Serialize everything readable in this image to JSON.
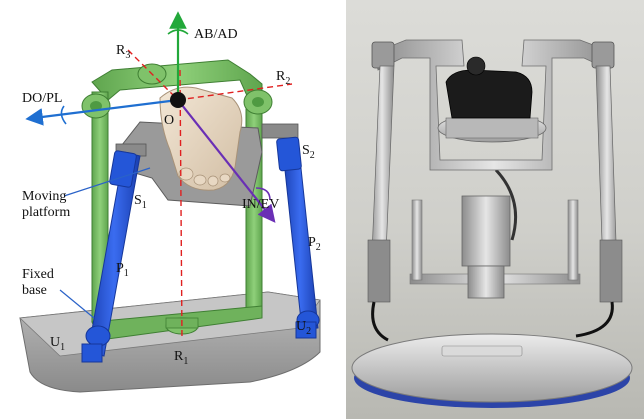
{
  "diagram": {
    "axes": {
      "ab_ad": "AB/AD",
      "do_pl": "DO/PL",
      "in_ev": "IN/EV",
      "origin": "O"
    },
    "rotation_axes": {
      "r1": {
        "base": "R",
        "sub": "1"
      },
      "r2": {
        "base": "R",
        "sub": "2"
      },
      "r3": {
        "base": "R",
        "sub": "3"
      }
    },
    "joints": {
      "s1": {
        "base": "S",
        "sub": "1"
      },
      "s2": {
        "base": "S",
        "sub": "2"
      },
      "p1": {
        "base": "P",
        "sub": "1"
      },
      "p2": {
        "base": "P",
        "sub": "2"
      },
      "u1": {
        "base": "U",
        "sub": "1"
      },
      "u2": {
        "base": "U",
        "sub": "2"
      }
    },
    "callouts": {
      "moving_platform_line1": "Moving",
      "moving_platform_line2": "platform",
      "fixed_base_line1": "Fixed",
      "fixed_base_line2": "base"
    }
  },
  "colors": {
    "frame_green": "#7fc26a",
    "frame_green_dark": "#4f9a42",
    "actuator_blue": "#2456d8",
    "actuator_blue_dark": "#16379a",
    "base_gray": "#a9a9a9",
    "axis_green": "#22a83a",
    "axis_blue": "#1f6fd1",
    "axis_purple": "#6a2fb5",
    "axis_red_dashed": "#e02020",
    "callout_line": "#2a62c8"
  }
}
